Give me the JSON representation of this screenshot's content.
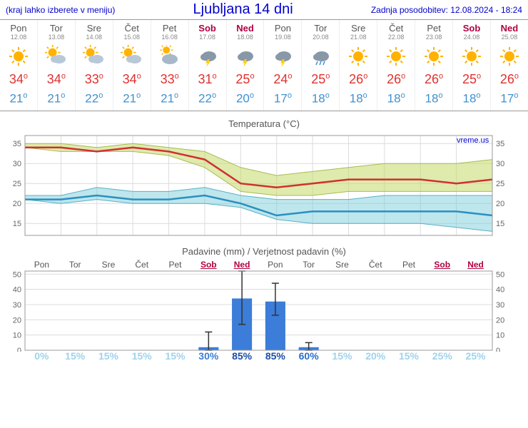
{
  "header": {
    "left": "(kraj lahko izberete v meniju)",
    "title": "Ljubljana 14 dni",
    "right": "Zadnja posodobitev: 12.08.2024 - 18:24"
  },
  "days": [
    {
      "name": "Pon",
      "date": "12.08",
      "weekend": false,
      "icon": "sun",
      "hi": 34,
      "lo": 21
    },
    {
      "name": "Tor",
      "date": "13.08",
      "weekend": false,
      "icon": "sun-cloud",
      "hi": 34,
      "lo": 21
    },
    {
      "name": "Sre",
      "date": "14.08",
      "weekend": false,
      "icon": "sun-cloud",
      "hi": 33,
      "lo": 22
    },
    {
      "name": "Čet",
      "date": "15.08",
      "weekend": false,
      "icon": "sun-cloud",
      "hi": 34,
      "lo": 21
    },
    {
      "name": "Pet",
      "date": "16.08",
      "weekend": false,
      "icon": "cloud-sun",
      "hi": 33,
      "lo": 21
    },
    {
      "name": "Sob",
      "date": "17.08",
      "weekend": true,
      "icon": "thunder",
      "hi": 31,
      "lo": 22
    },
    {
      "name": "Ned",
      "date": "18.08",
      "weekend": true,
      "icon": "thunder",
      "hi": 25,
      "lo": 20
    },
    {
      "name": "Pon",
      "date": "19.08",
      "weekend": false,
      "icon": "thunder",
      "hi": 24,
      "lo": 17
    },
    {
      "name": "Tor",
      "date": "20.08",
      "weekend": false,
      "icon": "rain",
      "hi": 25,
      "lo": 18
    },
    {
      "name": "Sre",
      "date": "21.08",
      "weekend": false,
      "icon": "sun",
      "hi": 26,
      "lo": 18
    },
    {
      "name": "Čet",
      "date": "22.08",
      "weekend": false,
      "icon": "sun",
      "hi": 26,
      "lo": 18
    },
    {
      "name": "Pet",
      "date": "23.08",
      "weekend": false,
      "icon": "sun",
      "hi": 26,
      "lo": 18
    },
    {
      "name": "Sob",
      "date": "24.08",
      "weekend": true,
      "icon": "sun",
      "hi": 25,
      "lo": 18
    },
    {
      "name": "Ned",
      "date": "25.08",
      "weekend": true,
      "icon": "sun",
      "hi": 26,
      "lo": 17
    }
  ],
  "temp_chart": {
    "title": "Temperatura (°C)",
    "ylim": [
      12,
      37
    ],
    "yticks": [
      15,
      20,
      25,
      30,
      35
    ],
    "watermark": "vreme.us",
    "hi_band": {
      "color_fill": "#c5d96a",
      "opacity": 0.55,
      "upper": [
        35,
        35,
        34,
        35,
        34,
        33,
        29,
        27,
        28,
        29,
        30,
        30,
        30,
        31
      ],
      "lower": [
        34,
        33,
        33,
        33,
        32,
        29,
        23,
        22,
        22,
        23,
        23,
        23,
        23,
        23
      ]
    },
    "hi_line": {
      "color": "#d03030",
      "width": 2.5,
      "values": [
        34,
        34,
        33,
        34,
        33,
        31,
        25,
        24,
        25,
        26,
        26,
        26,
        25,
        26
      ]
    },
    "lo_band": {
      "color_fill": "#6fc8d8",
      "opacity": 0.45,
      "upper": [
        22,
        22,
        24,
        23,
        23,
        24,
        22,
        21,
        21,
        21,
        22,
        22,
        22,
        22
      ],
      "lower": [
        21,
        20,
        21,
        20,
        20,
        20,
        19,
        16,
        15,
        15,
        15,
        15,
        14,
        13
      ]
    },
    "lo_line": {
      "color": "#2a8fc0",
      "width": 2.5,
      "values": [
        21,
        21,
        22,
        21,
        21,
        22,
        20,
        17,
        18,
        18,
        18,
        18,
        18,
        17
      ]
    },
    "grid_color": "#dcdcdc",
    "bg": "#ffffff"
  },
  "precip_chart": {
    "title": "Padavine (mm) / Verjetnost padavin (%)",
    "ylim": [
      0,
      52
    ],
    "yticks": [
      0,
      10,
      20,
      30,
      40,
      50
    ],
    "bar_color": "#3b7dd8",
    "bars": [
      0,
      0,
      0,
      0,
      0,
      2,
      34,
      32,
      2,
      0,
      0,
      0,
      0,
      0
    ],
    "err_lo": [
      0,
      0,
      0,
      0,
      0,
      0,
      17,
      23,
      0,
      0,
      0,
      0,
      0,
      0
    ],
    "err_hi": [
      0,
      0,
      0,
      0,
      0,
      12,
      52,
      44,
      5,
      0,
      0,
      0,
      0,
      0
    ],
    "probs": [
      0,
      15,
      15,
      15,
      15,
      30,
      85,
      85,
      60,
      15,
      20,
      15,
      25,
      25
    ],
    "prob_colors": [
      "#9fd3ec",
      "#9fd3ec",
      "#9fd3ec",
      "#9fd3ec",
      "#9fd3ec",
      "#3b7dd8",
      "#1a4da8",
      "#1a4da8",
      "#2a6fc8",
      "#9fd3ec",
      "#9fd3ec",
      "#9fd3ec",
      "#9fd3ec",
      "#9fd3ec"
    ],
    "day_labels": [
      "Pon",
      "Tor",
      "Sre",
      "Čet",
      "Pet",
      "Sob",
      "Ned",
      "Pon",
      "Tor",
      "Sre",
      "Čet",
      "Pet",
      "Sob",
      "Ned"
    ],
    "weekend_idx": [
      5,
      6,
      12,
      13
    ]
  },
  "colors": {
    "hi_text": "#e03030",
    "lo_text": "#4090d0",
    "weekend": "#b00040"
  }
}
